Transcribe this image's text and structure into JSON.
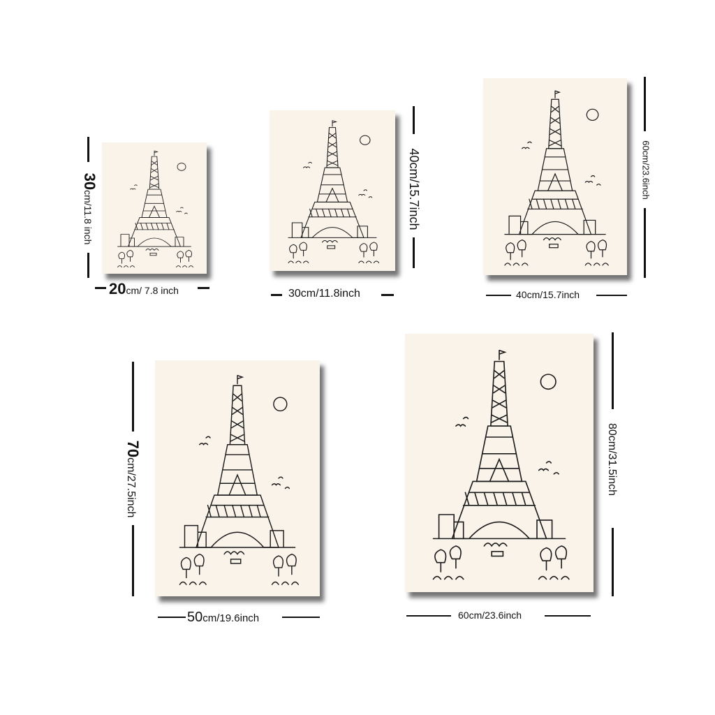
{
  "sizes": [
    {
      "id": "s1",
      "width_num": "20",
      "width_rest": "cm/ 7.8 inch",
      "height_num": "30",
      "height_rest": "cm/11.8 inch"
    },
    {
      "id": "s2",
      "width_label": "30cm/11.8inch",
      "height_label": "40cm/15.7inch"
    },
    {
      "id": "s3",
      "width_label": "40cm/15.7inch",
      "height_label": "60cm/23.6inch"
    },
    {
      "id": "s4",
      "width_num": "50",
      "width_rest": "cm/19.6inch",
      "height_num": "70",
      "height_rest": "cm/27.5inch"
    },
    {
      "id": "s5",
      "width_label": "60cm/23.6inch",
      "height_label": "80cm/31.5inch"
    }
  ],
  "artwork": {
    "subject": "eiffel-tower-sketch",
    "background": "#f9f3ea",
    "ink": "#1a1a1a"
  }
}
